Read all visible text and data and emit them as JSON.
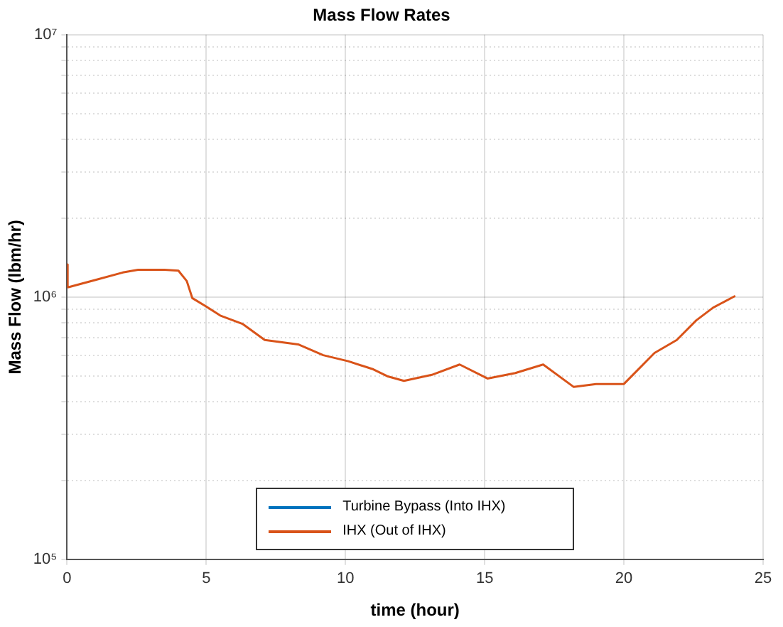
{
  "chart_data": {
    "type": "line",
    "title": "Mass Flow Rates",
    "xlabel": "time (hour)",
    "ylabel": "Mass Flow (lbm/hr)",
    "x": [
      0,
      0.02,
      0.05,
      1,
      2,
      2.55,
      3,
      3.5,
      4.0,
      4.3,
      4.5,
      5,
      5.5,
      6.3,
      7.1,
      8.3,
      9.2,
      10.1,
      11.0,
      11.5,
      12.1,
      13.1,
      14.1,
      15.1,
      16.1,
      17.1,
      18.2,
      19.0,
      20.0,
      21.1,
      21.9,
      22.6,
      23.2,
      24.0
    ],
    "series": [
      {
        "name": "Turbine Bypass (Into IHX)",
        "color": "#0072bd",
        "values": [
          null,
          null,
          null,
          null,
          null,
          null,
          null,
          null,
          null,
          null,
          null,
          null,
          null,
          null,
          null,
          null,
          null,
          null,
          null,
          null,
          null,
          null,
          null,
          null,
          null,
          null,
          null,
          null,
          null,
          null,
          null,
          null,
          null,
          null
        ]
      },
      {
        "name": "IHX (Out of IHX)",
        "color": "#d95319",
        "values": [
          1330000,
          1090000,
          1090000,
          1160000,
          1240000,
          1270000,
          1270000,
          1270000,
          1260000,
          1150000,
          990000,
          920000,
          850000,
          790000,
          686000,
          660000,
          600000,
          569000,
          530000,
          499000,
          479000,
          505000,
          553000,
          489000,
          513000,
          553000,
          454000,
          466000,
          466000,
          612000,
          686000,
          815000,
          910000,
          1010000
        ]
      }
    ],
    "xlim": [
      0,
      25
    ],
    "xticks": [
      0,
      5,
      10,
      15,
      20,
      25
    ],
    "ylim": [
      100000,
      10000000
    ],
    "log": "y",
    "yticks": [
      {
        "value": 100000,
        "label": "10⁵"
      },
      {
        "value": 200000,
        "label": null
      },
      {
        "value": 300000,
        "label": null
      },
      {
        "value": 400000,
        "label": null
      },
      {
        "value": 500000,
        "label": null
      },
      {
        "value": 600000,
        "label": null
      },
      {
        "value": 700000,
        "label": null
      },
      {
        "value": 800000,
        "label": null
      },
      {
        "value": 900000,
        "label": null
      },
      {
        "value": 1000000,
        "label": "10⁶"
      },
      {
        "value": 2000000,
        "label": null
      },
      {
        "value": 3000000,
        "label": null
      },
      {
        "value": 4000000,
        "label": null
      },
      {
        "value": 5000000,
        "label": null
      },
      {
        "value": 6000000,
        "label": null
      },
      {
        "value": 7000000,
        "label": null
      },
      {
        "value": 8000000,
        "label": null
      },
      {
        "value": 9000000,
        "label": null
      },
      {
        "value": 10000000,
        "label": "10⁷"
      }
    ],
    "grid": true,
    "legend": "bottom",
    "line_style": "solid",
    "marker": "none"
  }
}
